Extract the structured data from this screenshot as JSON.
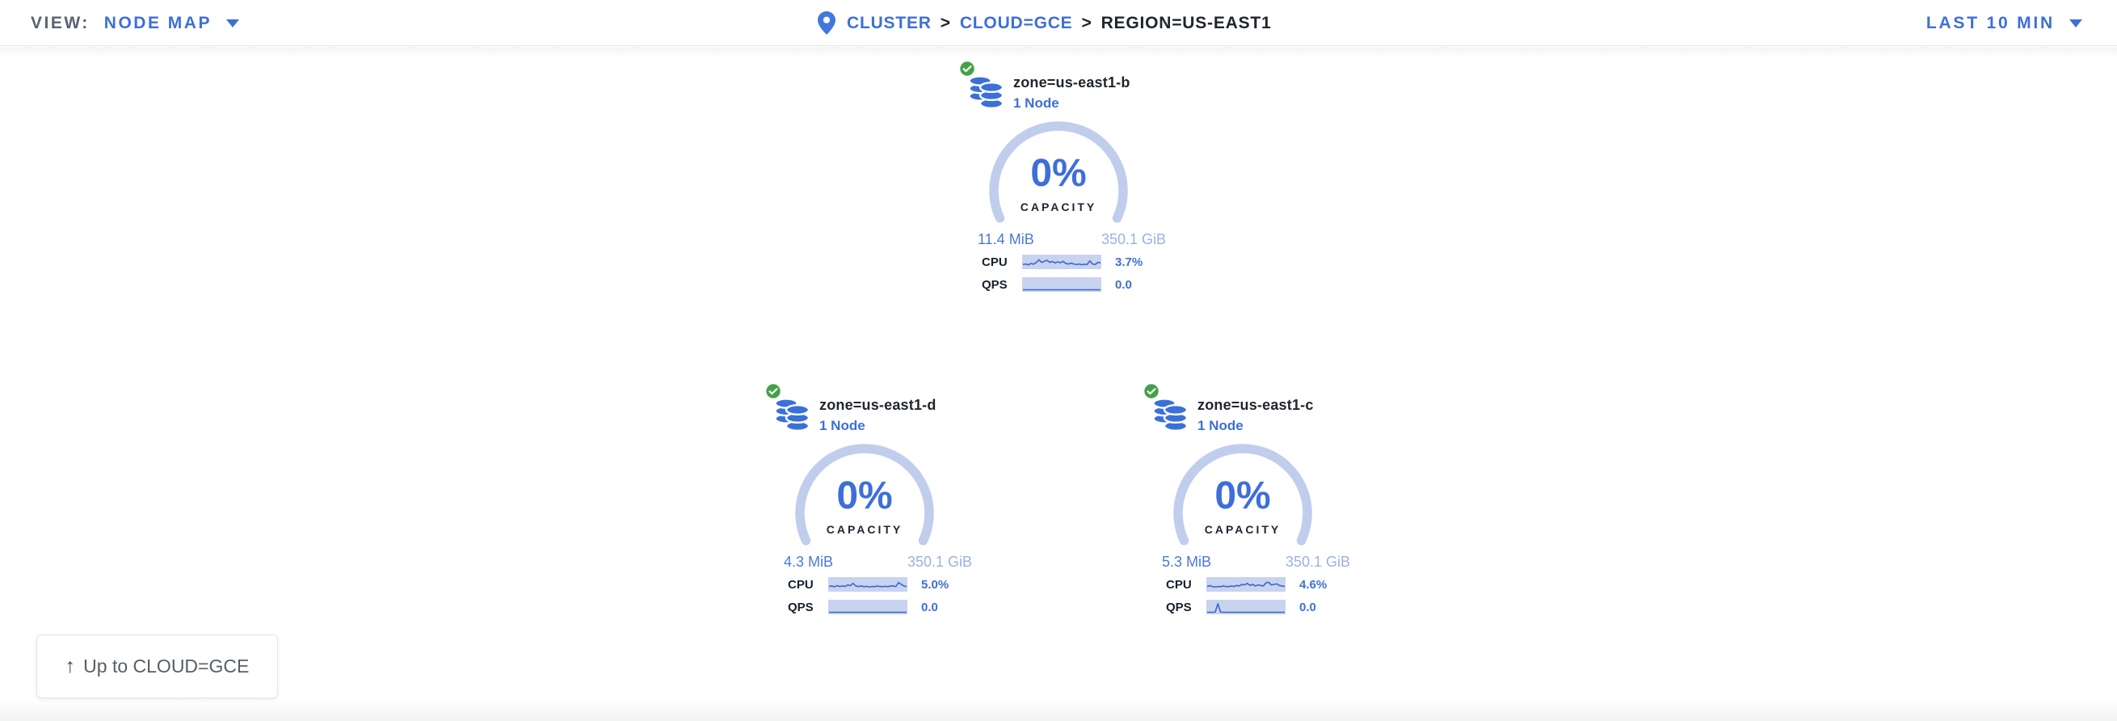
{
  "theme": {
    "accent_blue": "#3e6fd8",
    "dark_text": "#20262e",
    "gray_text": "#5a636e",
    "arc_blue": "#c0cdec",
    "used_blue": "#4a7ad7",
    "total_blue": "#9cb1e2",
    "spark_bg": "#c7d3ef",
    "spark_line": "#3b66c8",
    "badge_green": "#45a049",
    "icon_blue": "#3b70d8"
  },
  "topbar": {
    "view_label": "VIEW:",
    "view_value": "NODE MAP",
    "time_range": "LAST 10 MIN"
  },
  "breadcrumb": {
    "separator": ">",
    "items": [
      {
        "label": "CLUSTER",
        "type": "link"
      },
      {
        "label": "CLOUD=GCE",
        "type": "link"
      },
      {
        "label": "REGION=US-EAST1",
        "type": "current"
      }
    ]
  },
  "zones": [
    {
      "name": "zone=us-east1-b",
      "nodes": "1 Node",
      "status": "healthy",
      "capacity": {
        "pct": "0%",
        "label": "CAPACITY",
        "used": "11.4 MiB",
        "total": "350.1 GiB"
      },
      "cpu": {
        "label": "CPU",
        "value": "3.7%",
        "spark": [
          0.25,
          0.3,
          0.22,
          0.35,
          0.28,
          0.45,
          0.7,
          0.45,
          0.55,
          0.65,
          0.45,
          0.55,
          0.4,
          0.5,
          0.42,
          0.55,
          0.35,
          0.3,
          0.38,
          0.3,
          0.25,
          0.3,
          0.22,
          0.28,
          0.25,
          0.6,
          0.3,
          0.25,
          0.45,
          0.4
        ]
      },
      "qps": {
        "label": "QPS",
        "value": "0.0",
        "spark": [
          0,
          0,
          0,
          0,
          0,
          0,
          0,
          0,
          0,
          0,
          0,
          0,
          0,
          0,
          0,
          0,
          0,
          0,
          0,
          0,
          0,
          0,
          0,
          0,
          0,
          0,
          0,
          0,
          0,
          0
        ]
      }
    },
    {
      "name": "zone=us-east1-d",
      "nodes": "1 Node",
      "status": "healthy",
      "capacity": {
        "pct": "0%",
        "label": "CAPACITY",
        "used": "4.3 MiB",
        "total": "350.1 GiB"
      },
      "cpu": {
        "label": "CPU",
        "value": "5.0%",
        "spark": [
          0.3,
          0.35,
          0.28,
          0.38,
          0.3,
          0.35,
          0.3,
          0.45,
          0.38,
          0.6,
          0.35,
          0.3,
          0.35,
          0.28,
          0.32,
          0.25,
          0.3,
          0.28,
          0.35,
          0.3,
          0.28,
          0.32,
          0.28,
          0.35,
          0.35,
          0.3,
          0.68,
          0.5,
          0.35,
          0.3
        ]
      },
      "qps": {
        "label": "QPS",
        "value": "0.0",
        "spark": [
          0,
          0,
          0,
          0,
          0,
          0,
          0,
          0,
          0,
          0,
          0,
          0,
          0,
          0,
          0,
          0,
          0,
          0,
          0,
          0,
          0,
          0,
          0,
          0,
          0,
          0,
          0,
          0,
          0,
          0
        ]
      }
    },
    {
      "name": "zone=us-east1-c",
      "nodes": "1 Node",
      "status": "healthy",
      "capacity": {
        "pct": "0%",
        "label": "CAPACITY",
        "used": "5.3 MiB",
        "total": "350.1 GiB"
      },
      "cpu": {
        "label": "CPU",
        "value": "4.6%",
        "spark": [
          0.3,
          0.38,
          0.3,
          0.25,
          0.3,
          0.28,
          0.35,
          0.3,
          0.28,
          0.35,
          0.3,
          0.4,
          0.35,
          0.5,
          0.45,
          0.6,
          0.4,
          0.5,
          0.35,
          0.45,
          0.4,
          0.35,
          0.65,
          0.7,
          0.45,
          0.5,
          0.55,
          0.4,
          0.35,
          0.3
        ]
      },
      "qps": {
        "label": "QPS",
        "value": "0.0",
        "spark": [
          0,
          0,
          0,
          0.02,
          0.82,
          0.02,
          0,
          0,
          0,
          0,
          0,
          0,
          0,
          0,
          0,
          0,
          0,
          0,
          0,
          0,
          0,
          0,
          0,
          0,
          0,
          0,
          0,
          0,
          0,
          0
        ]
      }
    }
  ],
  "up_button": {
    "arrow": "↑",
    "label": "Up to CLOUD=GCE"
  }
}
